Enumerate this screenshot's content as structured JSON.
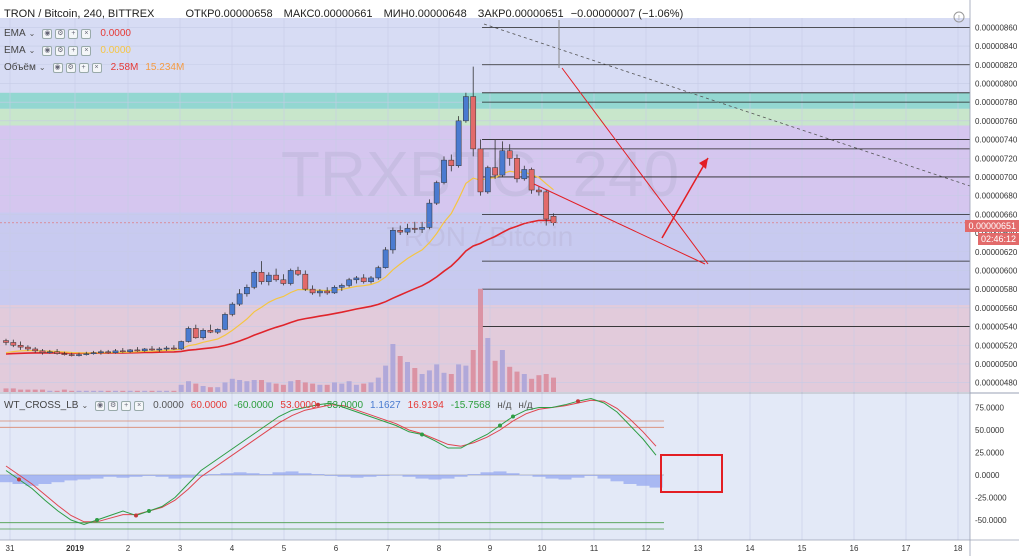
{
  "header": {
    "symbol": "TRON / Bitcoin, 240, BITTREX",
    "open_label": "ОТКР",
    "open": "0.00000658",
    "high_label": "МАКС",
    "high": "0.00000661",
    "low_label": "МИН",
    "low": "0.00000648",
    "close_label": "ЗАКР",
    "close": "0.00000651",
    "change": "−0.00000007 (−1.06%)"
  },
  "indicators": [
    {
      "name": "EMA",
      "value": "0.0000",
      "color": "#e53935"
    },
    {
      "name": "EMA",
      "value": "0.0000",
      "color": "#f5c542"
    },
    {
      "name": "Объём",
      "value": "2.58M",
      "value2": "15.234M",
      "color": "#e53935",
      "color2": "#f59b42"
    }
  ],
  "watermark": {
    "big": "TRXBTC, 240",
    "small": "TRON / Bitcoin"
  },
  "price_axis": {
    "labels": [
      "0.00000860",
      "0.00000840",
      "0.00000820",
      "0.00000800",
      "0.00000780",
      "0.00000760",
      "0.00000740",
      "0.00000720",
      "0.00000700",
      "0.00000680",
      "0.00000660",
      "0.00000640",
      "0.00000620",
      "0.00000600",
      "0.00000580",
      "0.00000560",
      "0.00000540",
      "0.00000520",
      "0.00000500",
      "0.00000480"
    ],
    "current_price": "0.00000651",
    "countdown": "02:46:12"
  },
  "time_axis": {
    "labels": [
      "31",
      "2019",
      "2",
      "3",
      "4",
      "5",
      "6",
      "7",
      "8",
      "9",
      "10",
      "11",
      "12",
      "13",
      "14",
      "15",
      "16",
      "17",
      "18"
    ]
  },
  "oscillator": {
    "legend": {
      "name": "WT_CROSS_LB",
      "values": [
        "0.0000",
        "60.0000",
        "-60.0000",
        "53.0000",
        "-53.0000",
        "1.1627",
        "16.9194",
        "-15.7568",
        "н/д",
        "н/д"
      ]
    },
    "axis": [
      "75.0000",
      "50.0000",
      "25.0000",
      "0.0000",
      "-25.0000",
      "-50.0000"
    ]
  },
  "colors": {
    "up": "#4a7bd0",
    "down": "#e26a6a",
    "ema_fast": "#e0242b",
    "ema_slow": "#f5c542",
    "bg": "#d7dcf4",
    "highlight": "#e31e24"
  },
  "chart_data": {
    "type": "candlestick",
    "timeframe": "240",
    "y_unit": "BTC",
    "ylim": [
      4.7e-06,
      8.7e-06
    ],
    "candles": [
      [
        5.25e-06,
        5.27e-06,
        5.2e-06,
        5.23e-06
      ],
      [
        5.23e-06,
        5.26e-06,
        5.18e-06,
        5.2e-06
      ],
      [
        5.2e-06,
        5.24e-06,
        5.15e-06,
        5.18e-06
      ],
      [
        5.18e-06,
        5.2e-06,
        5.14e-06,
        5.16e-06
      ],
      [
        5.16e-06,
        5.18e-06,
        5.12e-06,
        5.14e-06
      ],
      [
        5.14e-06,
        5.16e-06,
        5.1e-06,
        5.12e-06
      ],
      [
        5.12e-06,
        5.15e-06,
        5.11e-06,
        5.13e-06
      ],
      [
        5.13e-06,
        5.16e-06,
        5.1e-06,
        5.11e-06
      ],
      [
        5.11e-06,
        5.13e-06,
        5.09e-06,
        5.1e-06
      ],
      [
        5.1e-06,
        5.12e-06,
        5.08e-06,
        5.09e-06
      ],
      [
        5.09e-06,
        5.12e-06,
        5.08e-06,
        5.1e-06
      ],
      [
        5.1e-06,
        5.13e-06,
        5.09e-06,
        5.11e-06
      ],
      [
        5.11e-06,
        5.14e-06,
        5.1e-06,
        5.12e-06
      ],
      [
        5.12e-06,
        5.15e-06,
        5.1e-06,
        5.13e-06
      ],
      [
        5.13e-06,
        5.15e-06,
        5.11e-06,
        5.12e-06
      ],
      [
        5.12e-06,
        5.16e-06,
        5.11e-06,
        5.14e-06
      ],
      [
        5.14e-06,
        5.17e-06,
        5.12e-06,
        5.13e-06
      ],
      [
        5.13e-06,
        5.16e-06,
        5.12e-06,
        5.15e-06
      ],
      [
        5.15e-06,
        5.18e-06,
        5.13e-06,
        5.14e-06
      ],
      [
        5.14e-06,
        5.17e-06,
        5.13e-06,
        5.16e-06
      ],
      [
        5.16e-06,
        5.19e-06,
        5.14e-06,
        5.15e-06
      ],
      [
        5.15e-06,
        5.18e-06,
        5.13e-06,
        5.16e-06
      ],
      [
        5.16e-06,
        5.19e-06,
        5.14e-06,
        5.17e-06
      ],
      [
        5.17e-06,
        5.2e-06,
        5.15e-06,
        5.16e-06
      ],
      [
        5.16e-06,
        5.25e-06,
        5.15e-06,
        5.24e-06
      ],
      [
        5.24e-06,
        5.4e-06,
        5.23e-06,
        5.38e-06
      ],
      [
        5.38e-06,
        5.42e-06,
        5.27e-06,
        5.28e-06
      ],
      [
        5.28e-06,
        5.38e-06,
        5.26e-06,
        5.36e-06
      ],
      [
        5.36e-06,
        5.42e-06,
        5.33e-06,
        5.34e-06
      ],
      [
        5.34e-06,
        5.38e-06,
        5.32e-06,
        5.37e-06
      ],
      [
        5.37e-06,
        5.55e-06,
        5.36e-06,
        5.53e-06
      ],
      [
        5.53e-06,
        5.66e-06,
        5.51e-06,
        5.64e-06
      ],
      [
        5.64e-06,
        5.8e-06,
        5.62e-06,
        5.75e-06
      ],
      [
        5.75e-06,
        5.85e-06,
        5.72e-06,
        5.82e-06
      ],
      [
        5.82e-06,
        6e-06,
        5.8e-06,
        5.98e-06
      ],
      [
        5.98e-06,
        6.1e-06,
        5.85e-06,
        5.88e-06
      ],
      [
        5.88e-06,
        5.98e-06,
        5.84e-06,
        5.95e-06
      ],
      [
        5.95e-06,
        6.02e-06,
        5.88e-06,
        5.9e-06
      ],
      [
        5.9e-06,
        5.96e-06,
        5.84e-06,
        5.86e-06
      ],
      [
        5.86e-06,
        6.02e-06,
        5.84e-06,
        6e-06
      ],
      [
        6e-06,
        6.04e-06,
        5.94e-06,
        5.96e-06
      ],
      [
        5.96e-06,
        6e-06,
        5.78e-06,
        5.8e-06
      ],
      [
        5.8e-06,
        5.84e-06,
        5.74e-06,
        5.76e-06
      ],
      [
        5.76e-06,
        5.8e-06,
        5.72e-06,
        5.78e-06
      ],
      [
        5.78e-06,
        5.82e-06,
        5.74e-06,
        5.76e-06
      ],
      [
        5.76e-06,
        5.84e-06,
        5.75e-06,
        5.82e-06
      ],
      [
        5.82e-06,
        5.86e-06,
        5.78e-06,
        5.84e-06
      ],
      [
        5.84e-06,
        5.92e-06,
        5.82e-06,
        5.9e-06
      ],
      [
        5.9e-06,
        5.94e-06,
        5.86e-06,
        5.92e-06
      ],
      [
        5.92e-06,
        5.96e-06,
        5.86e-06,
        5.88e-06
      ],
      [
        5.88e-06,
        5.94e-06,
        5.86e-06,
        5.92e-06
      ],
      [
        5.92e-06,
        6.05e-06,
        5.9e-06,
        6.03e-06
      ],
      [
        6.03e-06,
        6.25e-06,
        6.02e-06,
        6.22e-06
      ],
      [
        6.22e-06,
        6.46e-06,
        6.18e-06,
        6.43e-06
      ],
      [
        6.43e-06,
        6.48e-06,
        6.38e-06,
        6.41e-06
      ],
      [
        6.41e-06,
        6.5e-06,
        6.38e-06,
        6.45e-06
      ],
      [
        6.45e-06,
        6.52e-06,
        6.4e-06,
        6.44e-06
      ],
      [
        6.44e-06,
        6.52e-06,
        6.4e-06,
        6.46e-06
      ],
      [
        6.46e-06,
        6.76e-06,
        6.44e-06,
        6.72e-06
      ],
      [
        6.72e-06,
        6.96e-06,
        6.7e-06,
        6.94e-06
      ],
      [
        6.94e-06,
        7.22e-06,
        6.92e-06,
        7.18e-06
      ],
      [
        7.18e-06,
        7.24e-06,
        7.06e-06,
        7.12e-06
      ],
      [
        7.12e-06,
        7.65e-06,
        7.1e-06,
        7.6e-06
      ],
      [
        7.6e-06,
        7.9e-06,
        7.58e-06,
        7.86e-06
      ],
      [
        7.86e-06,
        8.18e-06,
        7.22e-06,
        7.3e-06
      ],
      [
        7.3e-06,
        7.4e-06,
        6.8e-06,
        6.84e-06
      ],
      [
        6.84e-06,
        7.12e-06,
        6.82e-06,
        7.1e-06
      ],
      [
        7.1e-06,
        7.4e-06,
        6.98e-06,
        7.02e-06
      ],
      [
        7.02e-06,
        7.38e-06,
        7e-06,
        7.28e-06
      ],
      [
        7.28e-06,
        7.35e-06,
        7.12e-06,
        7.2e-06
      ],
      [
        7.2e-06,
        7.24e-06,
        6.94e-06,
        6.98e-06
      ],
      [
        6.98e-06,
        7.12e-06,
        6.96e-06,
        7.08e-06
      ],
      [
        7.08e-06,
        7.1e-06,
        6.82e-06,
        6.86e-06
      ],
      [
        6.86e-06,
        6.9e-06,
        6.8e-06,
        6.84e-06
      ],
      [
        6.84e-06,
        6.86e-06,
        6.48e-06,
        6.55e-06
      ],
      [
        6.58e-06,
        6.61e-06,
        6.48e-06,
        6.51e-06
      ]
    ],
    "volume": [
      0.3,
      0.3,
      0.2,
      0.2,
      0.2,
      0.2,
      0.1,
      0.1,
      0.2,
      0.1,
      0.1,
      0.1,
      0.1,
      0.1,
      0.1,
      0.1,
      0.1,
      0.1,
      0.1,
      0.1,
      0.1,
      0.1,
      0.1,
      0.1,
      0.6,
      0.9,
      0.7,
      0.5,
      0.4,
      0.4,
      0.8,
      1.1,
      1.0,
      0.9,
      1.0,
      1.0,
      0.8,
      0.7,
      0.6,
      0.9,
      1.0,
      0.8,
      0.7,
      0.6,
      0.6,
      0.8,
      0.7,
      0.9,
      0.6,
      0.7,
      0.8,
      1.2,
      2.2,
      4.0,
      3.0,
      2.5,
      2.0,
      1.5,
      1.8,
      2.3,
      1.6,
      1.5,
      2.3,
      2.2,
      3.5,
      8.6,
      4.5,
      2.6,
      3.5,
      2.1,
      1.7,
      1.5,
      1.1,
      1.4,
      1.5,
      1.2
    ]
  }
}
